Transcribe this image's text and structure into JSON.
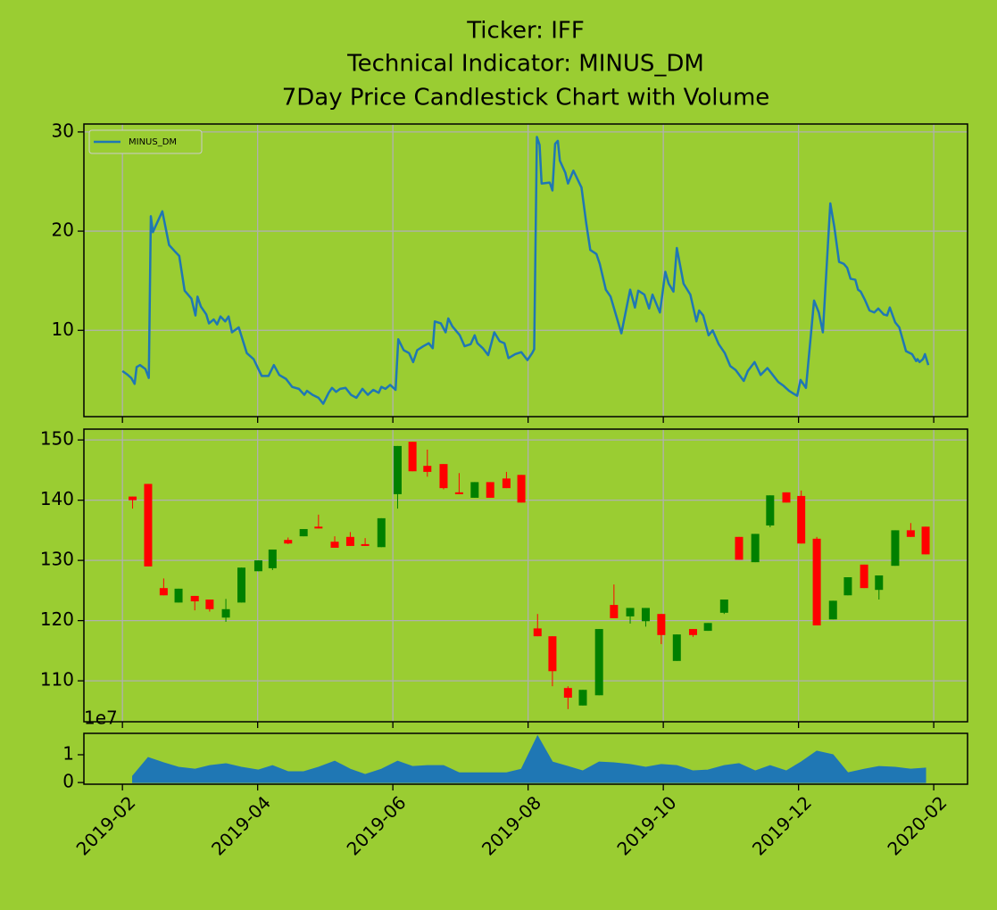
{
  "chart_data": [
    {
      "type": "line",
      "title": [
        "Ticker: IFF",
        "Technical Indicator: MINUS_DM",
        "7Day Price Candlestick Chart with Volume"
      ],
      "x": [
        1.0,
        1.08,
        1.13,
        1.18,
        1.21,
        1.26,
        1.34,
        1.39,
        1.42,
        1.45,
        1.51,
        1.59,
        1.69,
        1.77,
        1.84,
        1.92,
        2.02,
        2.08,
        2.11,
        2.16,
        2.24,
        2.28,
        2.35,
        2.4,
        2.45,
        2.52,
        2.57,
        2.62,
        2.72,
        2.84,
        2.94,
        3.06,
        3.16,
        3.24,
        3.32,
        3.42,
        3.51,
        3.61,
        3.69,
        3.73,
        3.81,
        3.9,
        3.97,
        4.05,
        4.1,
        4.16,
        4.22,
        4.3,
        4.38,
        4.46,
        4.55,
        4.63,
        4.71,
        4.79,
        4.83,
        4.89,
        4.96,
        5.04,
        5.08,
        5.16,
        5.24,
        5.3,
        5.36,
        5.45,
        5.53,
        5.59,
        5.62,
        5.71,
        5.78,
        5.82,
        5.88,
        5.99,
        6.06,
        6.15,
        6.21,
        6.25,
        6.33,
        6.41,
        6.5,
        6.58,
        6.65,
        6.71,
        6.81,
        6.9,
        6.99,
        7.06,
        7.09,
        7.13,
        7.17,
        7.2,
        7.32,
        7.36,
        7.4,
        7.44,
        7.47,
        7.55,
        7.59,
        7.67,
        7.79,
        7.86,
        7.92,
        8.01,
        8.06,
        8.15,
        8.22,
        8.38,
        8.51,
        8.58,
        8.63,
        8.72,
        8.79,
        8.84,
        8.95,
        9.03,
        9.08,
        9.15,
        9.2,
        9.3,
        9.4,
        9.49,
        9.53,
        9.59,
        9.67,
        9.73,
        9.82,
        9.91,
        9.99,
        10.07,
        10.19,
        10.25,
        10.35,
        10.44,
        10.54,
        10.62,
        10.7,
        10.78,
        10.86,
        10.93,
        10.98,
        11.03,
        11.11,
        11.23,
        11.3,
        11.36,
        11.47,
        11.53,
        11.6,
        11.67,
        11.72,
        11.77,
        11.84,
        11.88,
        11.92,
        11.98,
        12.05,
        12.12,
        12.18,
        12.26,
        12.31,
        12.35,
        12.43,
        12.49,
        12.59,
        12.68,
        12.74,
        12.76,
        12.79,
        12.84,
        12.87,
        12.92
      ],
      "series": [
        {
          "name": "MINUS_DM",
          "color": "#1f77b4",
          "values": [
            5.9,
            5.5,
            5.2,
            4.6,
            6.3,
            6.5,
            6.1,
            5.2,
            21.5,
            19.9,
            20.8,
            22.0,
            18.6,
            18.0,
            17.5,
            14.0,
            13.2,
            11.5,
            13.4,
            12.4,
            11.6,
            10.7,
            11.1,
            10.6,
            11.4,
            10.9,
            11.4,
            9.8,
            10.3,
            7.7,
            7.1,
            5.4,
            5.4,
            6.5,
            5.5,
            5.1,
            4.3,
            4.1,
            3.5,
            3.9,
            3.5,
            3.2,
            2.6,
            3.7,
            4.2,
            3.8,
            4.1,
            4.2,
            3.5,
            3.2,
            4.1,
            3.5,
            4.0,
            3.7,
            4.3,
            4.1,
            4.5,
            4.0,
            9.1,
            8.0,
            7.7,
            6.8,
            8.0,
            8.4,
            8.7,
            8.2,
            10.9,
            10.7,
            9.8,
            11.2,
            10.4,
            9.5,
            8.4,
            8.6,
            9.5,
            8.7,
            8.2,
            7.5,
            9.8,
            8.9,
            8.7,
            7.2,
            7.6,
            7.8,
            7.0,
            7.7,
            8.1,
            29.5,
            28.7,
            24.8,
            24.9,
            24.1,
            28.8,
            29.1,
            27.1,
            25.9,
            24.8,
            26.1,
            24.4,
            20.8,
            18.1,
            17.7,
            16.7,
            14.1,
            13.4,
            9.7,
            14.1,
            12.3,
            14.0,
            13.6,
            12.2,
            13.6,
            11.8,
            15.9,
            14.7,
            13.9,
            18.3,
            14.7,
            13.6,
            10.9,
            12.0,
            11.5,
            9.5,
            10.0,
            8.6,
            7.7,
            6.4,
            6.0,
            4.9,
            5.9,
            6.8,
            5.5,
            6.2,
            5.5,
            4.8,
            4.4,
            3.9,
            3.6,
            3.4,
            5.0,
            4.2,
            13.0,
            11.8,
            9.8,
            22.8,
            20.4,
            16.9,
            16.7,
            16.3,
            15.2,
            15.1,
            14.1,
            13.9,
            13.1,
            12.0,
            11.8,
            12.2,
            11.6,
            11.5,
            12.3,
            10.8,
            10.3,
            7.9,
            7.6,
            6.9,
            7.1,
            6.8,
            7.1,
            7.6,
            6.5
          ]
        }
      ],
      "xlim": [
        0.43,
        13.5
      ],
      "xticks": [
        1,
        3,
        5,
        7,
        9,
        11,
        13
      ],
      "ylim": [
        1.3,
        30.8
      ],
      "yticks": [
        10,
        20,
        30
      ],
      "grid": true,
      "legend": "upper left"
    },
    {
      "type": "candlestick",
      "x": [
        1.15,
        1.38,
        1.61,
        1.83,
        2.07,
        2.29,
        2.53,
        2.76,
        3.01,
        3.22,
        3.45,
        3.68,
        3.9,
        4.14,
        4.37,
        4.59,
        4.83,
        5.07,
        5.29,
        5.51,
        5.75,
        5.98,
        6.21,
        6.44,
        6.68,
        6.9,
        7.14,
        7.36,
        7.59,
        7.81,
        8.05,
        8.27,
        8.51,
        8.74,
        8.97,
        9.2,
        9.44,
        9.66,
        9.9,
        10.12,
        10.36,
        10.58,
        10.82,
        11.04,
        11.27,
        11.51,
        11.73,
        11.97,
        12.19,
        12.43,
        12.66,
        12.88
      ],
      "open": [
        140.6,
        142.7,
        125.4,
        123.0,
        124.1,
        123.5,
        120.5,
        123.0,
        128.2,
        128.7,
        133.4,
        134.0,
        135.6,
        133.1,
        133.9,
        132.7,
        132.2,
        141.0,
        149.7,
        145.7,
        146.0,
        141.3,
        140.4,
        143.0,
        143.6,
        144.2,
        118.7,
        117.4,
        108.8,
        105.9,
        107.6,
        122.6,
        120.7,
        119.9,
        121.1,
        113.3,
        118.6,
        118.3,
        121.3,
        133.9,
        129.7,
        135.8,
        141.3,
        140.7,
        133.6,
        120.2,
        124.2,
        129.3,
        125.1,
        129.1,
        135.0,
        135.6
      ],
      "high": [
        140.6,
        142.7,
        127.0,
        125.3,
        124.1,
        123.5,
        123.6,
        128.8,
        130.0,
        131.8,
        133.8,
        135.2,
        137.6,
        134.0,
        134.7,
        133.7,
        137.0,
        149.0,
        149.7,
        148.4,
        146.0,
        144.5,
        143.0,
        143.0,
        144.7,
        144.2,
        121.1,
        117.4,
        109.1,
        108.5,
        118.6,
        126.0,
        122.1,
        122.1,
        121.1,
        117.7,
        118.6,
        119.6,
        123.5,
        133.9,
        134.4,
        140.8,
        141.3,
        141.6,
        133.9,
        123.3,
        127.2,
        129.3,
        127.5,
        135.0,
        136.2,
        135.6
      ],
      "low": [
        138.6,
        129.0,
        124.2,
        123.0,
        121.7,
        121.5,
        119.8,
        123.0,
        128.2,
        128.4,
        132.7,
        134.0,
        135.3,
        132.1,
        132.4,
        132.4,
        132.2,
        138.6,
        144.8,
        143.9,
        141.8,
        141.0,
        140.4,
        140.4,
        142.0,
        139.6,
        117.4,
        109.1,
        105.3,
        105.9,
        107.6,
        120.4,
        119.5,
        119.0,
        116.1,
        113.3,
        117.3,
        118.3,
        121.1,
        130.1,
        129.7,
        135.5,
        139.6,
        132.8,
        119.2,
        120.2,
        124.2,
        125.4,
        123.5,
        129.1,
        133.9,
        131.0
      ],
      "close": [
        140.0,
        129.0,
        124.2,
        125.3,
        123.2,
        121.9,
        121.9,
        128.8,
        130.0,
        131.8,
        132.8,
        135.2,
        135.3,
        132.1,
        132.4,
        132.4,
        137.0,
        149.0,
        144.8,
        144.7,
        142.0,
        141.0,
        143.0,
        140.4,
        142.0,
        139.6,
        117.4,
        111.6,
        107.2,
        108.5,
        118.6,
        120.4,
        122.1,
        122.1,
        117.6,
        117.7,
        117.6,
        119.6,
        123.5,
        130.1,
        134.4,
        140.8,
        139.6,
        132.8,
        119.2,
        123.3,
        127.2,
        125.4,
        127.5,
        135.0,
        133.9,
        131.0
      ],
      "up_color": "green",
      "down_color": "red",
      "xlim": [
        0.43,
        13.5
      ],
      "xticks": [
        1,
        3,
        5,
        7,
        9,
        11,
        13
      ],
      "ylim": [
        103.2,
        151.8
      ],
      "yticks": [
        110,
        120,
        130,
        140,
        150
      ],
      "grid": true
    },
    {
      "type": "area",
      "x": [
        1.15,
        1.38,
        1.61,
        1.83,
        2.07,
        2.29,
        2.53,
        2.76,
        3.01,
        3.22,
        3.45,
        3.68,
        3.9,
        4.14,
        4.37,
        4.59,
        4.83,
        5.07,
        5.29,
        5.51,
        5.75,
        5.98,
        6.21,
        6.44,
        6.68,
        6.9,
        7.14,
        7.36,
        7.59,
        7.81,
        8.05,
        8.27,
        8.51,
        8.74,
        8.97,
        9.2,
        9.44,
        9.66,
        9.9,
        10.12,
        10.36,
        10.58,
        10.82,
        11.04,
        11.27,
        11.51,
        11.73,
        11.97,
        12.19,
        12.43,
        12.66,
        12.88
      ],
      "values": [
        0.23,
        0.9,
        0.71,
        0.55,
        0.48,
        0.61,
        0.68,
        0.55,
        0.45,
        0.61,
        0.39,
        0.39,
        0.55,
        0.77,
        0.48,
        0.29,
        0.48,
        0.77,
        0.58,
        0.61,
        0.61,
        0.35,
        0.35,
        0.35,
        0.35,
        0.48,
        1.68,
        0.74,
        0.58,
        0.42,
        0.74,
        0.71,
        0.65,
        0.55,
        0.65,
        0.61,
        0.42,
        0.45,
        0.61,
        0.68,
        0.42,
        0.61,
        0.42,
        0.74,
        1.13,
        1.0,
        0.35,
        0.48,
        0.58,
        0.55,
        0.48,
        0.52
      ],
      "color": "#1f77b4",
      "offset_label": "1e7",
      "xlim": [
        0.43,
        13.5
      ],
      "xticks": [
        {
          "value": 1,
          "label": "2019-02"
        },
        {
          "value": 3,
          "label": "2019-04"
        },
        {
          "value": 5,
          "label": "2019-06"
        },
        {
          "value": 7,
          "label": "2019-08"
        },
        {
          "value": 9,
          "label": "2019-10"
        },
        {
          "value": 11,
          "label": "2019-12"
        },
        {
          "value": 13,
          "label": "2020-02"
        }
      ],
      "ylim": [
        -0.06,
        1.77
      ],
      "yticks": [
        0,
        1
      ],
      "grid": false
    }
  ]
}
